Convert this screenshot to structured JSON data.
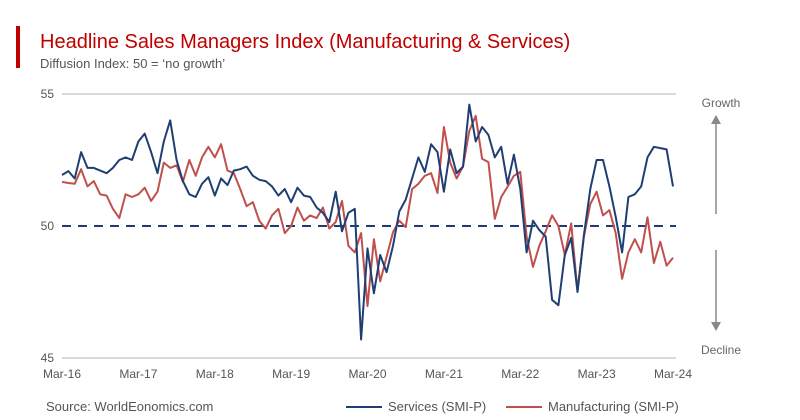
{
  "chart_data": {
    "type": "line",
    "title": "Headline Sales Managers Index (Manufacturing & Services)",
    "subtitle": "Diffusion Index: 50 = ‘no growth’",
    "x_frequency": "monthly",
    "x_range": [
      "Mar-16",
      "Mar-24"
    ],
    "x_ticks": [
      "Mar-16",
      "Mar-17",
      "Mar-18",
      "Mar-19",
      "Mar-20",
      "Mar-21",
      "Mar-22",
      "Mar-23",
      "Mar-24"
    ],
    "y_ticks": [
      "55",
      "50",
      "45"
    ],
    "ylim": [
      45,
      55
    ],
    "reference_line": 50,
    "annotations": {
      "up": "Growth",
      "down": "Decline"
    },
    "legend_position": "bottom",
    "series": [
      {
        "name": "Services (SMI-P)",
        "color": "#1f3f73",
        "values": [
          51.93,
          52.08,
          51.8,
          52.8,
          52.2,
          52.2,
          52.1,
          52.0,
          52.2,
          52.5,
          52.6,
          52.5,
          53.2,
          53.5,
          52.8,
          52.0,
          53.2,
          54.0,
          52.5,
          51.7,
          51.2,
          51.1,
          51.6,
          51.85,
          51.15,
          51.8,
          51.55,
          52.1,
          52.15,
          52.25,
          51.9,
          51.75,
          51.7,
          51.5,
          51.15,
          51.4,
          50.9,
          51.45,
          51.15,
          51.1,
          50.7,
          50.5,
          50.15,
          51.3,
          49.8,
          50.5,
          50.65,
          45.7,
          49.15,
          47.45,
          48.9,
          48.25,
          49.25,
          50.55,
          51.0,
          51.8,
          52.6,
          52.05,
          53.1,
          52.8,
          51.3,
          52.9,
          52.0,
          52.25,
          54.6,
          53.2,
          53.75,
          53.45,
          52.6,
          53.0,
          51.6,
          52.7,
          51.4,
          49.0,
          50.2,
          49.85,
          49.6,
          47.2,
          47.0,
          48.9,
          49.55,
          47.5,
          49.65,
          51.4,
          52.5,
          52.5,
          51.5,
          50.35,
          49.0,
          51.1,
          51.2,
          51.5,
          52.6,
          53.0,
          52.95,
          52.9,
          51.5
        ]
      },
      {
        "name": "Manufacturing (SMI-P)",
        "color": "#c0504d",
        "values": [
          51.67,
          51.63,
          51.6,
          52.15,
          51.5,
          51.7,
          51.2,
          51.15,
          50.65,
          50.3,
          51.2,
          51.1,
          51.2,
          51.45,
          50.95,
          51.3,
          52.4,
          52.2,
          52.3,
          51.67,
          52.5,
          51.9,
          52.6,
          53.0,
          52.6,
          53.1,
          52.1,
          52.0,
          51.4,
          50.75,
          50.9,
          50.2,
          49.9,
          50.4,
          50.65,
          49.73,
          50.0,
          50.7,
          50.2,
          50.4,
          50.3,
          50.7,
          49.9,
          50.15,
          50.95,
          49.25,
          49.0,
          49.73,
          46.97,
          49.5,
          47.9,
          48.83,
          49.77,
          50.2,
          49.96,
          51.4,
          51.6,
          51.9,
          52.0,
          51.25,
          53.75,
          52.4,
          51.8,
          52.25,
          53.6,
          54.17,
          52.55,
          52.42,
          50.27,
          51.1,
          51.48,
          51.9,
          52.05,
          49.6,
          48.45,
          49.25,
          49.8,
          50.4,
          50.0,
          48.9,
          50.1,
          47.55,
          49.6,
          50.83,
          51.3,
          50.4,
          50.6,
          49.73,
          48.0,
          49.0,
          49.5,
          49.0,
          50.33,
          48.6,
          49.4,
          48.5,
          48.8
        ]
      }
    ]
  },
  "source": "Source: WorldEonomics.com"
}
